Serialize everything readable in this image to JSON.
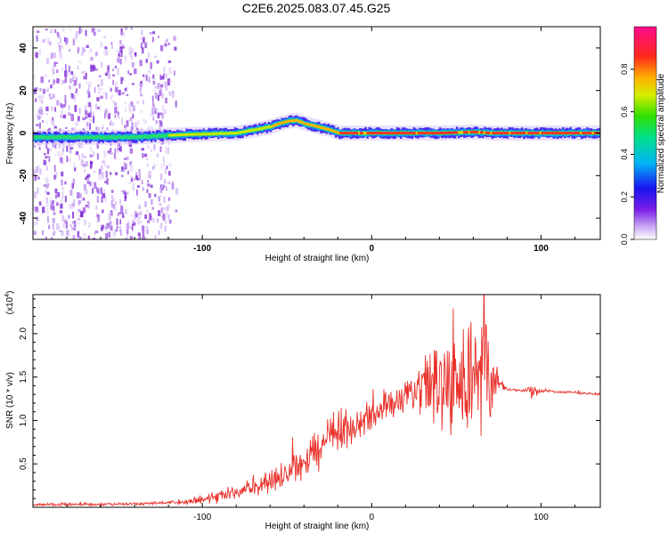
{
  "title": "C2E6.2025.083.07.45.G25",
  "colors": {
    "snr_line": "#e8312a",
    "signal_core": "#e8312a",
    "noise": "#9a4fe0",
    "frame": "#000000"
  },
  "chart_data": [
    {
      "type": "heatmap",
      "name": "spectrogram",
      "xlabel": "Height of straight line (km)",
      "ylabel": "Frequency (Hz)",
      "xlim": [
        -200,
        135
      ],
      "ylim": [
        -50,
        50
      ],
      "xticks": [
        -100,
        0,
        100
      ],
      "yticks": [
        -40,
        -20,
        0,
        20,
        40
      ],
      "ridge": {
        "x": [
          -200,
          -170,
          -140,
          -120,
          -100,
          -80,
          -70,
          -60,
          -55,
          -50,
          -45,
          -40,
          -35,
          -30,
          -25,
          -20,
          -10,
          0,
          20,
          40,
          60,
          70,
          100,
          135
        ],
        "y": [
          -2,
          -2,
          -2,
          -1,
          -0.5,
          0,
          1.5,
          3,
          4.5,
          5.5,
          6,
          4.5,
          3.5,
          2.5,
          1.5,
          0,
          0,
          0,
          0,
          0,
          0.5,
          0,
          0,
          0
        ]
      },
      "colorbar": {
        "label": "Normalized spectral amplitude",
        "range": [
          0,
          1
        ],
        "ticks": [
          "0.0",
          "0.2",
          "0.4",
          "0.6",
          "0.8"
        ]
      }
    },
    {
      "type": "line",
      "name": "snr",
      "xlabel": "Height of straight line (km)",
      "ylabel": "SNR (10 * v/v)",
      "scale_label": "(x10",
      "scale_exponent": "4",
      "xlim": [
        -200,
        135
      ],
      "ylim": [
        0,
        2.45
      ],
      "xticks": [
        -100,
        0,
        100
      ],
      "yticks": [
        "0.5",
        "1.0",
        "1.5",
        "2.0"
      ],
      "series": [
        {
          "name": "SNR",
          "envelope": {
            "x": [
              -200,
              -140,
              -110,
              -100,
              -90,
              -80,
              -70,
              -60,
              -50,
              -40,
              -30,
              -20,
              -10,
              0,
              10,
              20,
              30,
              40,
              50,
              55,
              60,
              65,
              70,
              75,
              80,
              90,
              95,
              100,
              110,
              120,
              135
            ],
            "y": [
              0.03,
              0.04,
              0.06,
              0.08,
              0.12,
              0.18,
              0.22,
              0.3,
              0.42,
              0.55,
              0.7,
              0.85,
              0.95,
              1.05,
              1.15,
              1.25,
              1.35,
              1.45,
              1.5,
              1.45,
              1.55,
              1.6,
              1.5,
              1.4,
              1.36,
              1.34,
              1.34,
              1.34,
              1.33,
              1.32,
              1.3
            ],
            "amp": [
              0.02,
              0.02,
              0.03,
              0.06,
              0.08,
              0.1,
              0.12,
              0.15,
              0.2,
              0.28,
              0.35,
              0.3,
              0.25,
              0.22,
              0.2,
              0.22,
              0.45,
              0.6,
              0.75,
              0.9,
              0.95,
              1.0,
              0.8,
              0.15,
              0.02,
              0.02,
              0.1,
              0.02,
              0.02,
              0.02,
              0.02
            ]
          }
        }
      ]
    }
  ]
}
